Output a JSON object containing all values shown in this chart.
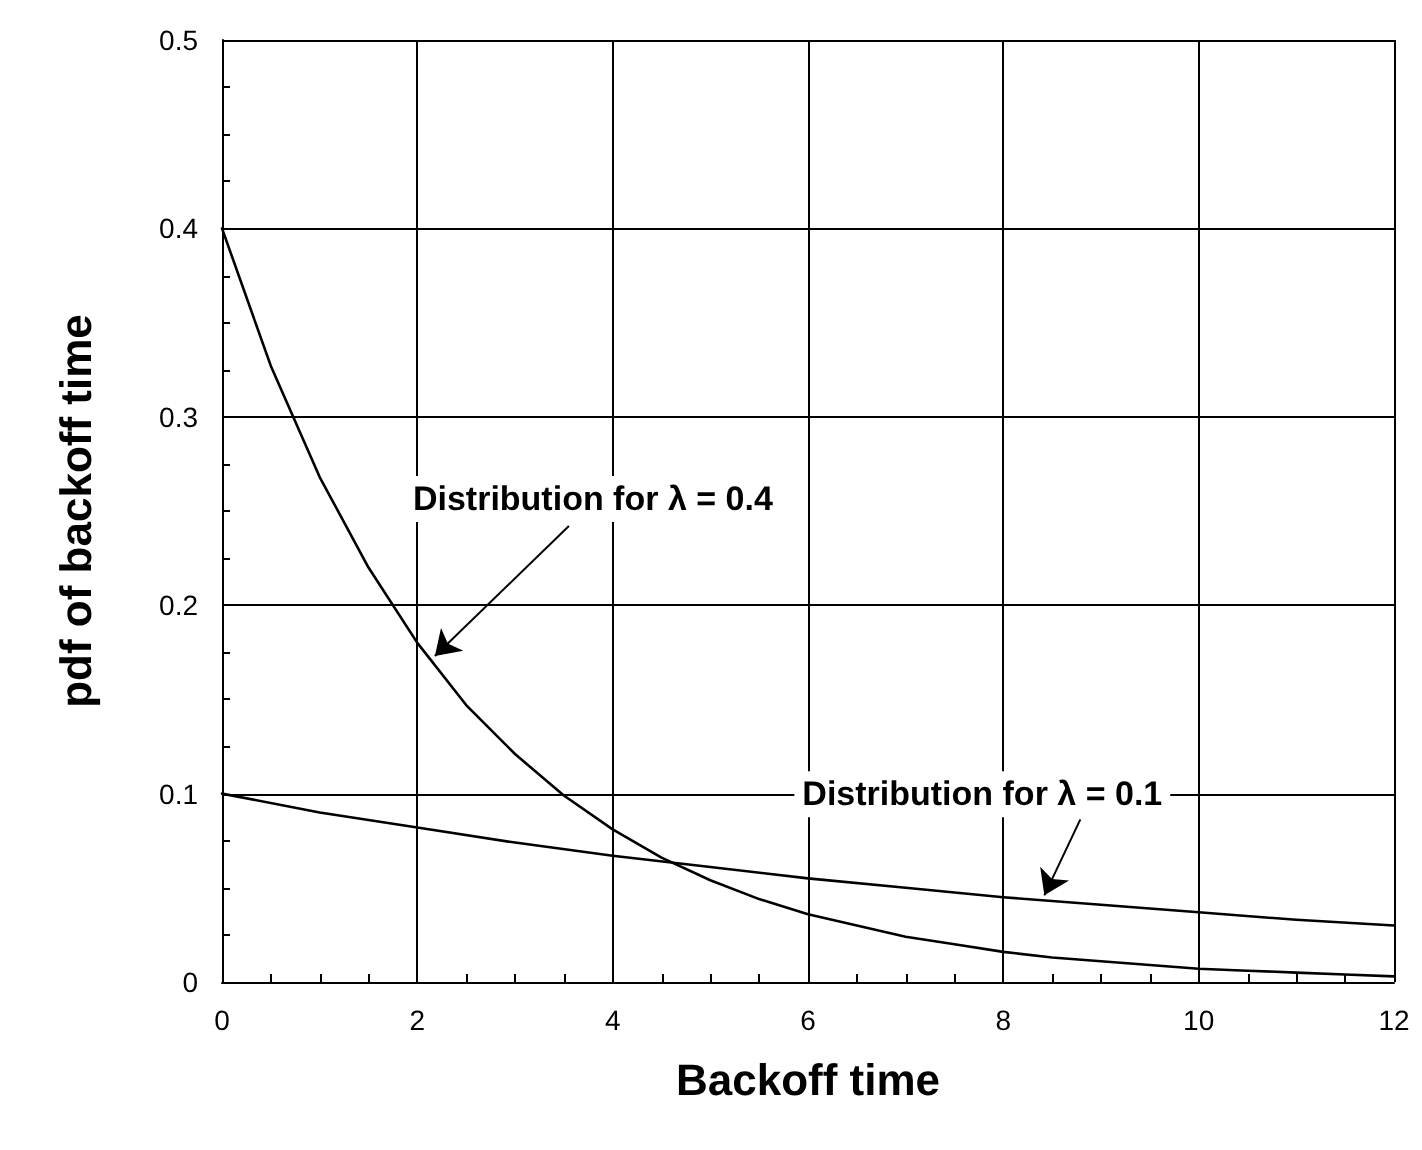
{
  "chart_data": {
    "type": "line",
    "xlabel": "Backoff time",
    "ylabel": "pdf of backoff time",
    "xlim": [
      0,
      12
    ],
    "xticks": [
      0,
      2,
      4,
      6,
      8,
      10,
      12
    ],
    "ylim": [
      0,
      0.5
    ],
    "yticks": [
      0,
      0.1,
      0.2,
      0.3,
      0.4,
      0.5
    ],
    "grid": true,
    "marker": "none",
    "line_style": "solid",
    "series": [
      {
        "color": "#000000",
        "x": [
          0,
          0.5,
          1,
          1.5,
          2,
          2.5,
          3,
          3.5,
          4,
          4.5,
          5,
          5.5,
          6,
          6.5,
          7,
          7.5,
          8,
          8.5,
          9,
          9.5,
          10,
          10.5,
          11,
          11.5,
          12
        ],
        "values": [
          0.4,
          0.327,
          0.268,
          0.22,
          0.18,
          0.147,
          0.121,
          0.099,
          0.081,
          0.066,
          0.054,
          0.044,
          0.036,
          0.03,
          0.024,
          0.02,
          0.016,
          0.013,
          0.011,
          0.009,
          0.007,
          0.006,
          0.005,
          0.004,
          0.003
        ]
      },
      {
        "color": "#000000",
        "x": [
          0,
          1,
          2,
          3,
          4,
          5,
          6,
          7,
          8,
          9,
          10,
          11,
          12
        ],
        "values": [
          0.1,
          0.09,
          0.082,
          0.074,
          0.067,
          0.061,
          0.055,
          0.05,
          0.045,
          0.041,
          0.037,
          0.033,
          0.03
        ]
      }
    ],
    "annotations": [
      {
        "text": "Distribution for λ = 0.4",
        "x": 2.18,
        "y": 0.173
      },
      {
        "text": "Distribution for λ = 0.1",
        "x": 8.42,
        "y": 0.046
      }
    ]
  }
}
